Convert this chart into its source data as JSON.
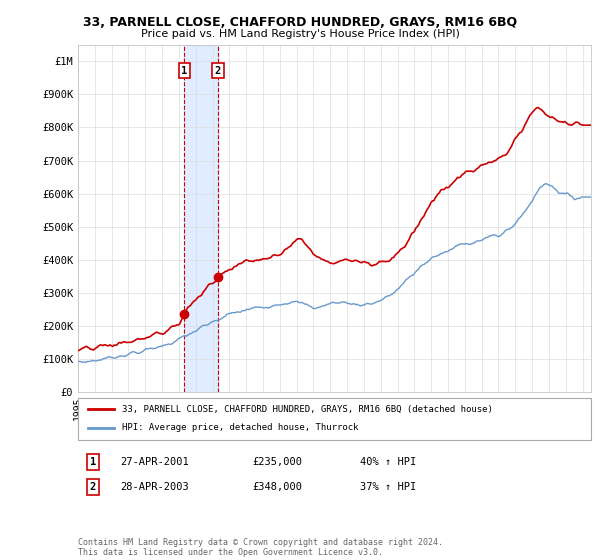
{
  "title": "33, PARNELL CLOSE, CHAFFORD HUNDRED, GRAYS, RM16 6BQ",
  "subtitle": "Price paid vs. HM Land Registry's House Price Index (HPI)",
  "ylim": [
    0,
    1050000
  ],
  "yticks": [
    0,
    100000,
    200000,
    300000,
    400000,
    500000,
    600000,
    700000,
    800000,
    900000,
    1000000
  ],
  "ytick_labels": [
    "£0",
    "£100K",
    "£200K",
    "£300K",
    "£400K",
    "£500K",
    "£600K",
    "£700K",
    "£800K",
    "£900K",
    "£1M"
  ],
  "xlim_start": 1995.0,
  "xlim_end": 2025.5,
  "hpi_color": "#6699cc",
  "price_color": "#cc0000",
  "sale1_x": 2001.32,
  "sale1_y": 235000,
  "sale1_label": "1",
  "sale1_date": "27-APR-2001",
  "sale1_price": "£235,000",
  "sale1_hpi": "40% ↑ HPI",
  "sale2_x": 2003.32,
  "sale2_y": 348000,
  "sale2_label": "2",
  "sale2_date": "28-APR-2003",
  "sale2_price": "£348,000",
  "sale2_hpi": "37% ↑ HPI",
  "legend_label_price": "33, PARNELL CLOSE, CHAFFORD HUNDRED, GRAYS, RM16 6BQ (detached house)",
  "legend_label_hpi": "HPI: Average price, detached house, Thurrock",
  "footnote": "Contains HM Land Registry data © Crown copyright and database right 2024.\nThis data is licensed under the Open Government Licence v3.0.",
  "background_color": "#ffffff",
  "grid_color": "#dddddd",
  "shade_color": "#cce0ff",
  "hpi_waypoints": [
    [
      1995.0,
      90000
    ],
    [
      1996.0,
      95000
    ],
    [
      1997.0,
      105000
    ],
    [
      1998.0,
      115000
    ],
    [
      1999.0,
      125000
    ],
    [
      2000.0,
      140000
    ],
    [
      2001.0,
      158000
    ],
    [
      2002.0,
      185000
    ],
    [
      2003.0,
      210000
    ],
    [
      2004.0,
      235000
    ],
    [
      2005.0,
      248000
    ],
    [
      2006.0,
      258000
    ],
    [
      2007.0,
      268000
    ],
    [
      2007.5,
      272000
    ],
    [
      2008.0,
      270000
    ],
    [
      2008.5,
      265000
    ],
    [
      2009.0,
      255000
    ],
    [
      2009.5,
      258000
    ],
    [
      2010.0,
      268000
    ],
    [
      2010.5,
      272000
    ],
    [
      2011.0,
      270000
    ],
    [
      2011.5,
      265000
    ],
    [
      2012.0,
      265000
    ],
    [
      2012.5,
      268000
    ],
    [
      2013.0,
      278000
    ],
    [
      2013.5,
      290000
    ],
    [
      2014.0,
      310000
    ],
    [
      2014.5,
      335000
    ],
    [
      2015.0,
      360000
    ],
    [
      2015.5,
      385000
    ],
    [
      2016.0,
      405000
    ],
    [
      2016.5,
      415000
    ],
    [
      2017.0,
      425000
    ],
    [
      2017.5,
      440000
    ],
    [
      2018.0,
      450000
    ],
    [
      2018.5,
      455000
    ],
    [
      2019.0,
      460000
    ],
    [
      2019.5,
      470000
    ],
    [
      2020.0,
      470000
    ],
    [
      2020.5,
      490000
    ],
    [
      2021.0,
      510000
    ],
    [
      2021.5,
      540000
    ],
    [
      2022.0,
      580000
    ],
    [
      2022.5,
      620000
    ],
    [
      2022.8,
      635000
    ],
    [
      2023.0,
      630000
    ],
    [
      2023.5,
      610000
    ],
    [
      2024.0,
      595000
    ],
    [
      2024.5,
      588000
    ],
    [
      2025.0,
      590000
    ]
  ],
  "red_waypoints": [
    [
      1995.0,
      125000
    ],
    [
      1996.0,
      132000
    ],
    [
      1997.0,
      142000
    ],
    [
      1998.0,
      152000
    ],
    [
      1999.0,
      162000
    ],
    [
      2000.0,
      180000
    ],
    [
      2001.0,
      205000
    ],
    [
      2001.32,
      235000
    ],
    [
      2001.5,
      255000
    ],
    [
      2002.0,
      280000
    ],
    [
      2002.5,
      305000
    ],
    [
      2003.0,
      330000
    ],
    [
      2003.32,
      348000
    ],
    [
      2003.5,
      360000
    ],
    [
      2004.0,
      375000
    ],
    [
      2004.5,
      385000
    ],
    [
      2005.0,
      395000
    ],
    [
      2005.5,
      400000
    ],
    [
      2006.0,
      405000
    ],
    [
      2006.5,
      410000
    ],
    [
      2007.0,
      420000
    ],
    [
      2007.5,
      435000
    ],
    [
      2008.0,
      460000
    ],
    [
      2008.3,
      465000
    ],
    [
      2008.5,
      450000
    ],
    [
      2009.0,
      420000
    ],
    [
      2009.5,
      400000
    ],
    [
      2010.0,
      390000
    ],
    [
      2010.5,
      395000
    ],
    [
      2011.0,
      400000
    ],
    [
      2011.5,
      395000
    ],
    [
      2012.0,
      390000
    ],
    [
      2012.5,
      390000
    ],
    [
      2013.0,
      395000
    ],
    [
      2013.5,
      400000
    ],
    [
      2014.0,
      420000
    ],
    [
      2014.5,
      450000
    ],
    [
      2015.0,
      490000
    ],
    [
      2015.5,
      530000
    ],
    [
      2016.0,
      575000
    ],
    [
      2016.5,
      600000
    ],
    [
      2017.0,
      620000
    ],
    [
      2017.5,
      645000
    ],
    [
      2018.0,
      660000
    ],
    [
      2018.5,
      670000
    ],
    [
      2019.0,
      680000
    ],
    [
      2019.5,
      695000
    ],
    [
      2020.0,
      700000
    ],
    [
      2020.5,
      720000
    ],
    [
      2021.0,
      760000
    ],
    [
      2021.5,
      800000
    ],
    [
      2022.0,
      840000
    ],
    [
      2022.3,
      865000
    ],
    [
      2022.5,
      860000
    ],
    [
      2023.0,
      830000
    ],
    [
      2023.5,
      820000
    ],
    [
      2024.0,
      815000
    ],
    [
      2024.5,
      810000
    ],
    [
      2025.0,
      812000
    ]
  ]
}
